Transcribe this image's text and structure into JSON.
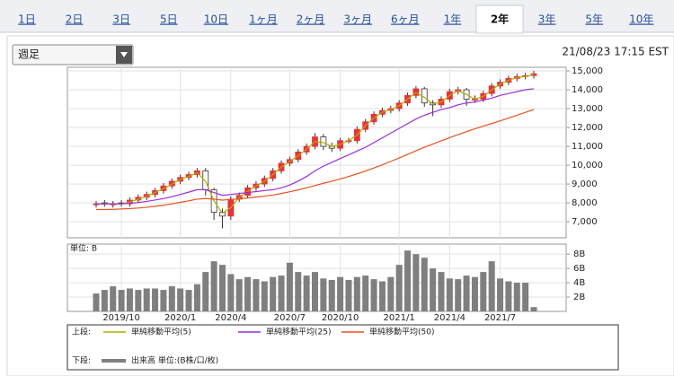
{
  "tabs": [
    {
      "label": "1日",
      "selected": false
    },
    {
      "label": "2日",
      "selected": false
    },
    {
      "label": "3日",
      "selected": false
    },
    {
      "label": "5日",
      "selected": false
    },
    {
      "label": "10日",
      "selected": false
    },
    {
      "label": "1ヶ月",
      "selected": false
    },
    {
      "label": "2ヶ月",
      "selected": false
    },
    {
      "label": "3ヶ月",
      "selected": false
    },
    {
      "label": "6ヶ月",
      "selected": false
    },
    {
      "label": "1年",
      "selected": false
    },
    {
      "label": "2年",
      "selected": true
    },
    {
      "label": "3年",
      "selected": false
    },
    {
      "label": "5年",
      "selected": false
    },
    {
      "label": "10年",
      "selected": false
    }
  ],
  "period_select": "週足",
  "timestamp": "21/08/23 17:15 EST",
  "legend": {
    "upper": "上段:",
    "lower": "下段:"
  },
  "chart_data": [
    {
      "type": "candlestick",
      "up_color": "#e8323a",
      "down_color": "#ffffff",
      "grid": true,
      "open": [
        7900,
        8000,
        7900,
        8000,
        7950,
        8150,
        8300,
        8450,
        8650,
        8900,
        9150,
        9350,
        9500,
        9700,
        8700,
        7500,
        7300,
        8200,
        8400,
        8800,
        9000,
        9300,
        9700,
        10100,
        10300,
        10700,
        11000,
        11500,
        11000,
        10900,
        11300,
        11300,
        11900,
        12300,
        12700,
        12900,
        13000,
        13300,
        13700,
        14050,
        13300,
        13200,
        13500,
        13900,
        14000,
        13500,
        13500,
        13800,
        14200,
        14400,
        14600,
        14700,
        14750
      ],
      "high": [
        8100,
        8150,
        8100,
        8150,
        8300,
        8450,
        8600,
        8800,
        9050,
        9300,
        9500,
        9650,
        9850,
        9850,
        8800,
        7700,
        8350,
        8550,
        8950,
        9150,
        9450,
        9850,
        10250,
        10450,
        10850,
        11150,
        11700,
        11650,
        11200,
        11450,
        11450,
        12050,
        12450,
        12850,
        13050,
        13150,
        13450,
        13850,
        14200,
        14150,
        13450,
        13650,
        14050,
        14150,
        14100,
        13700,
        13950,
        14350,
        14550,
        14750,
        14850,
        14900,
        15000
      ],
      "low": [
        7750,
        7800,
        7750,
        7800,
        7800,
        8000,
        8150,
        8300,
        8500,
        8750,
        9000,
        9200,
        9350,
        8400,
        7100,
        6650,
        7100,
        8050,
        8250,
        8650,
        8850,
        9150,
        9550,
        9950,
        10150,
        10550,
        10850,
        10800,
        10700,
        10750,
        11150,
        11150,
        11750,
        12150,
        12550,
        12750,
        12850,
        13150,
        13550,
        13100,
        12600,
        13050,
        13350,
        13750,
        13150,
        13300,
        13350,
        13650,
        14050,
        14250,
        14450,
        14550,
        14600
      ],
      "close": [
        7950,
        7950,
        7950,
        7950,
        8150,
        8300,
        8450,
        8650,
        8900,
        9150,
        9350,
        9500,
        9700,
        8700,
        7500,
        7300,
        8200,
        8400,
        8800,
        9000,
        9300,
        9700,
        10100,
        10300,
        10700,
        11000,
        11500,
        11000,
        10900,
        11300,
        11300,
        11900,
        12300,
        12700,
        12900,
        13000,
        13300,
        13700,
        14050,
        13300,
        13200,
        13500,
        13900,
        14000,
        13500,
        13500,
        13800,
        14200,
        14400,
        14600,
        14700,
        14750,
        14850
      ],
      "series": [
        {
          "name": "単純移動平均(5)",
          "color": "#b0ac00",
          "values": [
            7950,
            7950,
            7950,
            7950,
            8050,
            8200,
            8350,
            8550,
            8750,
            9000,
            9250,
            9400,
            9600,
            9150,
            8100,
            7450,
            7750,
            8300,
            8600,
            8900,
            9150,
            9500,
            9900,
            10200,
            10500,
            10850,
            11250,
            11200,
            11000,
            11100,
            11300,
            11600,
            12100,
            12500,
            12800,
            12950,
            13150,
            13500,
            13850,
            13600,
            13250,
            13350,
            13700,
            13950,
            13750,
            13500,
            13650,
            14000,
            14300,
            14500,
            14650,
            14700,
            14800
          ]
        },
        {
          "name": "単純移動平均(25)",
          "color": "#9a2fd6",
          "values": [
            7950,
            7950,
            7950,
            7950,
            7980,
            8020,
            8080,
            8150,
            8230,
            8330,
            8450,
            8570,
            8700,
            8700,
            8550,
            8400,
            8450,
            8500,
            8550,
            8600,
            8650,
            8700,
            8800,
            8950,
            9150,
            9400,
            9700,
            9950,
            10150,
            10350,
            10550,
            10750,
            10950,
            11200,
            11450,
            11700,
            11950,
            12200,
            12450,
            12650,
            12800,
            12950,
            13050,
            13200,
            13300,
            13350,
            13450,
            13550,
            13700,
            13800,
            13900,
            14000,
            14050
          ]
        },
        {
          "name": "単純移動平均(50)",
          "color": "#e8501e",
          "values": [
            7650,
            7650,
            7660,
            7680,
            7700,
            7730,
            7770,
            7820,
            7880,
            7950,
            8030,
            8110,
            8200,
            8230,
            8200,
            8150,
            8180,
            8220,
            8260,
            8310,
            8360,
            8420,
            8500,
            8590,
            8690,
            8800,
            8920,
            9040,
            9150,
            9270,
            9400,
            9540,
            9690,
            9850,
            10020,
            10200,
            10380,
            10570,
            10760,
            10950,
            11120,
            11290,
            11460,
            11620,
            11780,
            11930,
            12070,
            12210,
            12350,
            12500,
            12650,
            12800,
            12950
          ]
        }
      ],
      "ylim": [
        6150,
        15190
      ],
      "yticks": [
        {
          "value": 7000,
          "label": "7,000"
        },
        {
          "value": 8000,
          "label": "8,000"
        },
        {
          "value": 9000,
          "label": "9,000"
        },
        {
          "value": 10000,
          "label": "10,000"
        },
        {
          "value": 11000,
          "label": "11,000"
        },
        {
          "value": 12000,
          "label": "12,000"
        },
        {
          "value": 13000,
          "label": "13,000"
        },
        {
          "value": 14000,
          "label": "14,000"
        },
        {
          "value": 15000,
          "label": "15,000"
        }
      ]
    },
    {
      "type": "bar",
      "unit_label": "単位: B",
      "name": "出来高 単位:(B株/口/枚)",
      "color": "#7f7f7f",
      "grid": true,
      "categories": [
        null,
        null,
        null,
        "2019/10",
        null,
        null,
        null,
        null,
        null,
        null,
        "2020/1",
        null,
        null,
        null,
        null,
        null,
        "2020/4",
        null,
        null,
        null,
        null,
        null,
        null,
        "2020/7",
        null,
        null,
        null,
        null,
        null,
        "2020/10",
        null,
        null,
        null,
        null,
        null,
        null,
        "2021/1",
        null,
        null,
        null,
        null,
        null,
        "2021/4",
        null,
        null,
        null,
        null,
        null,
        "2021/7",
        null,
        null,
        null,
        null
      ],
      "values": [
        2.5,
        3.0,
        3.5,
        3.0,
        3.2,
        3.0,
        3.2,
        3.2,
        3.0,
        3.5,
        3.2,
        3.0,
        3.8,
        5.5,
        7.0,
        6.5,
        5.2,
        4.5,
        4.8,
        4.5,
        4.2,
        4.8,
        5.0,
        6.8,
        5.5,
        5.0,
        5.5,
        4.6,
        4.4,
        4.8,
        4.4,
        4.8,
        5.0,
        4.5,
        4.2,
        4.8,
        6.5,
        8.5,
        8.0,
        7.5,
        6.0,
        5.5,
        4.6,
        4.5,
        5.0,
        4.8,
        5.5,
        7.0,
        4.6,
        4.2,
        4.0,
        4.0,
        0.6
      ],
      "ylim": [
        0,
        9.4
      ],
      "yticks": [
        {
          "value": 2,
          "label": "2B"
        },
        {
          "value": 4,
          "label": "4B"
        },
        {
          "value": 6,
          "label": "6B"
        },
        {
          "value": 8,
          "label": "8B"
        }
      ]
    }
  ]
}
